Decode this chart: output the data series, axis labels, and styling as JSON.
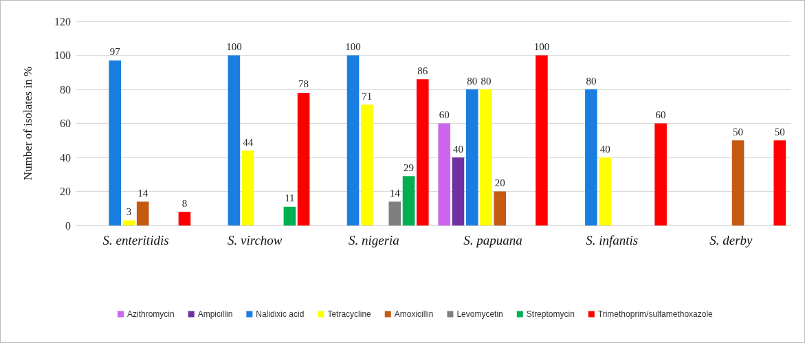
{
  "chart_data": {
    "type": "bar",
    "ylabel": "Number of isolates in %",
    "categories": [
      "S. enteritidis",
      "S. virchow",
      "S. nigeria",
      "S. papuana",
      "S. infantis",
      "S. derby"
    ],
    "series": [
      {
        "name": "Azithromycin",
        "color": "#cc66ee",
        "values": [
          null,
          null,
          null,
          60,
          null,
          null
        ]
      },
      {
        "name": "Ampicillin",
        "color": "#7030a0",
        "values": [
          null,
          null,
          null,
          40,
          null,
          null
        ]
      },
      {
        "name": "Nalidixic acid",
        "color": "#1a7ee0",
        "values": [
          97,
          100,
          100,
          80,
          80,
          null
        ]
      },
      {
        "name": "Tetracycline",
        "color": "#ffff00",
        "values": [
          3,
          44,
          71,
          80,
          40,
          null
        ]
      },
      {
        "name": "Amoxicillin",
        "color": "#c55a11",
        "values": [
          14,
          null,
          null,
          20,
          null,
          50
        ]
      },
      {
        "name": "Levomycetin",
        "color": "#7f7f7f",
        "values": [
          null,
          null,
          14,
          null,
          null,
          null
        ]
      },
      {
        "name": "Streptomycin",
        "color": "#00b050",
        "values": [
          null,
          11,
          29,
          null,
          null,
          null
        ]
      },
      {
        "name": "Trimethoprim/sulfamethoxazole",
        "color": "#ff0000",
        "values": [
          8,
          78,
          86,
          100,
          60,
          50
        ]
      }
    ],
    "ylim": [
      0,
      120
    ],
    "yticks": [
      0,
      20,
      40,
      60,
      80,
      100,
      120
    ],
    "grid": "y",
    "data_labels": true,
    "legend": "bottom"
  }
}
